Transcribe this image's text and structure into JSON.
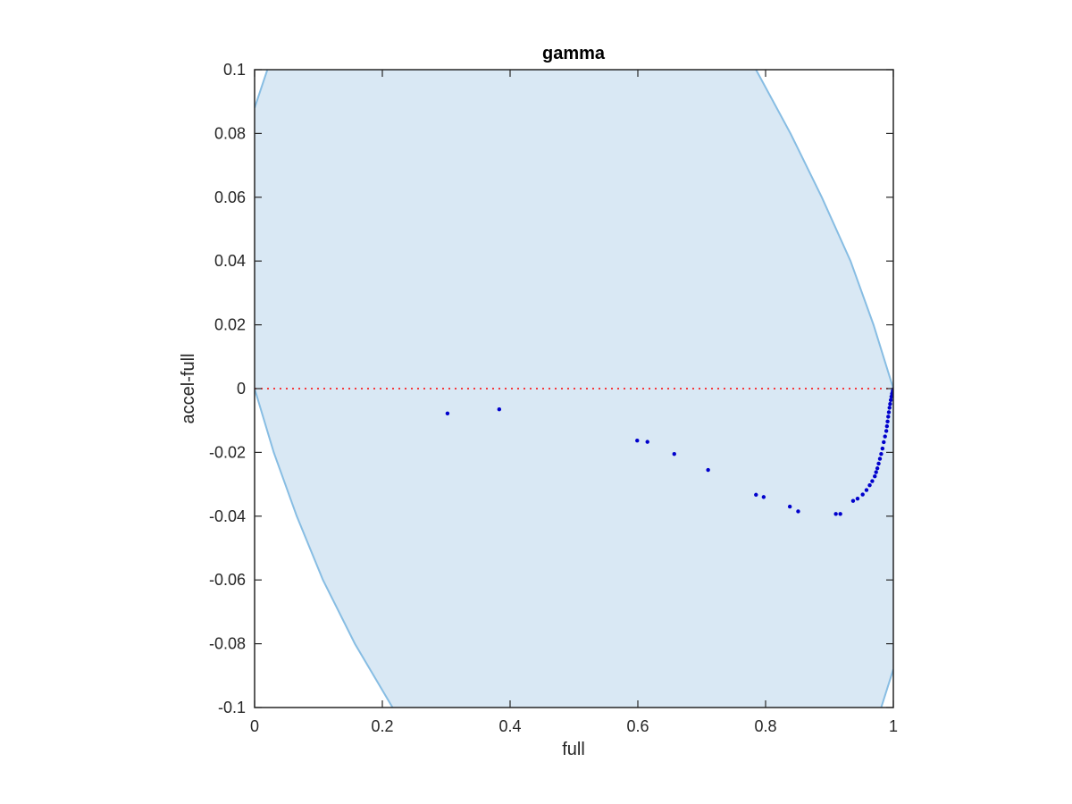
{
  "chart_data": {
    "type": "scatter",
    "title": "gamma",
    "xlabel": "full",
    "ylabel": "accel-full",
    "xlim": [
      0,
      1
    ],
    "ylim": [
      -0.1,
      0.1
    ],
    "x_ticks": [
      0,
      0.2,
      0.4,
      0.6,
      0.8,
      1
    ],
    "x_tick_labels": [
      "0",
      "0.2",
      "0.4",
      "0.6",
      "0.8",
      "1"
    ],
    "y_ticks": [
      -0.1,
      -0.08,
      -0.06,
      -0.04,
      -0.02,
      0,
      0.02,
      0.04,
      0.06,
      0.08,
      0.1
    ],
    "y_tick_labels": [
      "-0.1",
      "-0.08",
      "-0.06",
      "-0.04",
      "-0.02",
      "0",
      "0.02",
      "0.04",
      "0.06",
      "0.08",
      "0.1"
    ],
    "grid": false,
    "colors": {
      "points": "#0000cc",
      "region_fill": "#d9e8f4",
      "region_edge": "#87bde3",
      "zero_line": "#ff0000",
      "axes": "#262626"
    },
    "region": {
      "description_free": true,
      "left_boundary": [
        [
          0.02,
          0.1
        ],
        [
          0.0,
          0.088
        ],
        [
          0.0,
          -0.1
        ],
        [
          0.216,
          -0.1
        ]
      ],
      "left_curve": [
        [
          0.0,
          0.0
        ],
        [
          0.03,
          -0.02
        ],
        [
          0.066,
          -0.04
        ],
        [
          0.107,
          -0.06
        ],
        [
          0.157,
          -0.08
        ],
        [
          0.216,
          -0.1
        ]
      ],
      "left_top_curve": [
        [
          0.0,
          0.088
        ],
        [
          0.02,
          0.1
        ]
      ],
      "right_curve": [
        [
          0.785,
          0.1
        ],
        [
          0.839,
          0.08
        ],
        [
          0.888,
          0.06
        ],
        [
          0.933,
          0.04
        ],
        [
          0.969,
          0.02
        ],
        [
          1.0,
          0.0
        ]
      ],
      "right_bottom_curve": [
        [
          0.981,
          -0.1
        ],
        [
          1.0,
          -0.088
        ]
      ]
    },
    "zero_line": {
      "y": 0,
      "style": "dotted"
    },
    "series": [
      {
        "x": [
          0.302,
          0.383,
          0.599,
          0.615,
          0.657,
          0.71,
          0.785,
          0.797,
          0.838,
          0.851,
          0.91,
          0.917,
          0.937,
          0.944,
          0.952,
          0.958,
          0.963,
          0.967,
          0.971,
          0.973,
          0.975,
          0.977,
          0.979,
          0.981,
          0.983,
          0.985,
          0.987,
          0.989,
          0.99,
          0.991,
          0.992,
          0.993,
          0.994,
          0.995,
          0.996,
          0.997,
          0.998,
          0.999,
          1.0
        ],
        "y": [
          -0.0078,
          -0.0065,
          -0.0163,
          -0.0167,
          -0.0205,
          -0.0255,
          -0.0333,
          -0.034,
          -0.037,
          -0.0385,
          -0.0393,
          -0.0393,
          -0.0352,
          -0.0345,
          -0.0332,
          -0.0318,
          -0.0303,
          -0.029,
          -0.0275,
          -0.0262,
          -0.025,
          -0.0235,
          -0.022,
          -0.0205,
          -0.0188,
          -0.0168,
          -0.015,
          -0.0133,
          -0.0118,
          -0.0103,
          -0.0088,
          -0.0074,
          -0.006,
          -0.0048,
          -0.0036,
          -0.0025,
          -0.0016,
          -0.0008,
          -0.0002
        ]
      }
    ]
  }
}
